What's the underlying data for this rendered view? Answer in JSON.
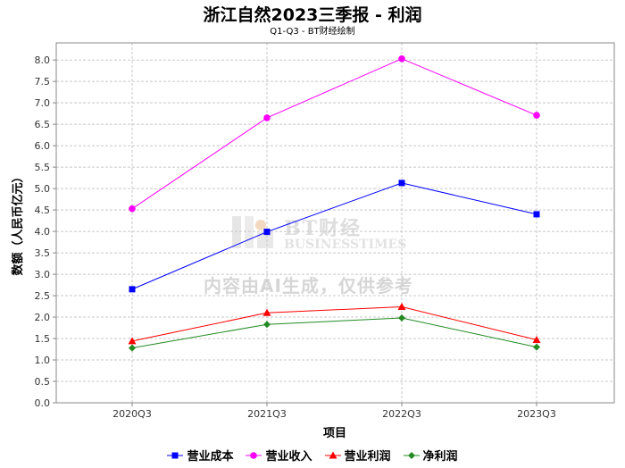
{
  "title": "浙江自然2023三季报 - 利润",
  "subtitle": "Q1-Q3 - BT财经绘制",
  "watermark": {
    "brand_cn": "BT财经",
    "brand_en": "BUSINESSTIMES",
    "notice": "内容由AI生成，仅供参考"
  },
  "colors": {
    "营业成本": "#0000ff",
    "营业收入": "#ff00ff",
    "营业利润": "#ff0000",
    "净利润": "#228b22"
  },
  "chart_data": {
    "type": "line",
    "title": "浙江自然2023三季报 - 利润",
    "subtitle": "Q1-Q3 - BT财经绘制",
    "xlabel": "项目",
    "ylabel": "数额（人民币亿元）",
    "categories": [
      "2020Q3",
      "2021Q3",
      "2022Q3",
      "2023Q3"
    ],
    "ylim": [
      0,
      8.4
    ],
    "yticks": [
      "0.0",
      "0.5",
      "1.0",
      "1.5",
      "2.0",
      "2.5",
      "3.0",
      "3.5",
      "4.0",
      "4.5",
      "5.0",
      "5.5",
      "6.0",
      "6.5",
      "7.0",
      "7.5",
      "8.0"
    ],
    "grid": true,
    "legend_position": "bottom",
    "series": [
      {
        "name": "营业成本",
        "marker": "square",
        "values": [
          2.65,
          3.99,
          5.13,
          4.4
        ]
      },
      {
        "name": "营业收入",
        "marker": "circle",
        "values": [
          4.53,
          6.65,
          8.03,
          6.71
        ]
      },
      {
        "name": "营业利润",
        "marker": "triangle",
        "values": [
          1.44,
          2.1,
          2.24,
          1.47
        ]
      },
      {
        "name": "净利润",
        "marker": "diamond",
        "values": [
          1.28,
          1.83,
          1.98,
          1.3
        ]
      }
    ]
  }
}
